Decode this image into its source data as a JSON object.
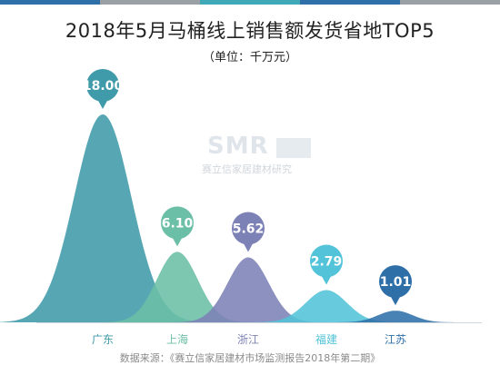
{
  "title": "2018年5月马桶线上销售额发货省地TOP5",
  "unit": "（单位：千万元）",
  "source": "数据来源：《赛立信家居建材市场监测报告2018年第二期》",
  "watermark": {
    "logo": "SMR",
    "text": "赛立信家居建材研究"
  },
  "colors": {
    "topbars": [
      "#2f6fa8",
      "#9aa0a6",
      "#3fa9b8",
      "#2f6fa8",
      "#9aa0a6"
    ],
    "axis": "#cfd6dc"
  },
  "chart_data": {
    "type": "area",
    "categories": [
      "广东",
      "上海",
      "浙江",
      "福建",
      "江苏"
    ],
    "values": [
      18.0,
      6.1,
      5.62,
      2.79,
      1.01
    ],
    "value_labels": [
      "18.00",
      "6.10",
      "5.62",
      "2.79",
      "1.01"
    ],
    "colors": [
      "#3f9aa9",
      "#6bbfa6",
      "#7d82b6",
      "#52c3d8",
      "#2f6fa8"
    ],
    "title": "2018年5月马桶线上销售额发货省地TOP5",
    "ylabel": "",
    "ylim": [
      0,
      18
    ],
    "grid": false,
    "legend": "none"
  }
}
